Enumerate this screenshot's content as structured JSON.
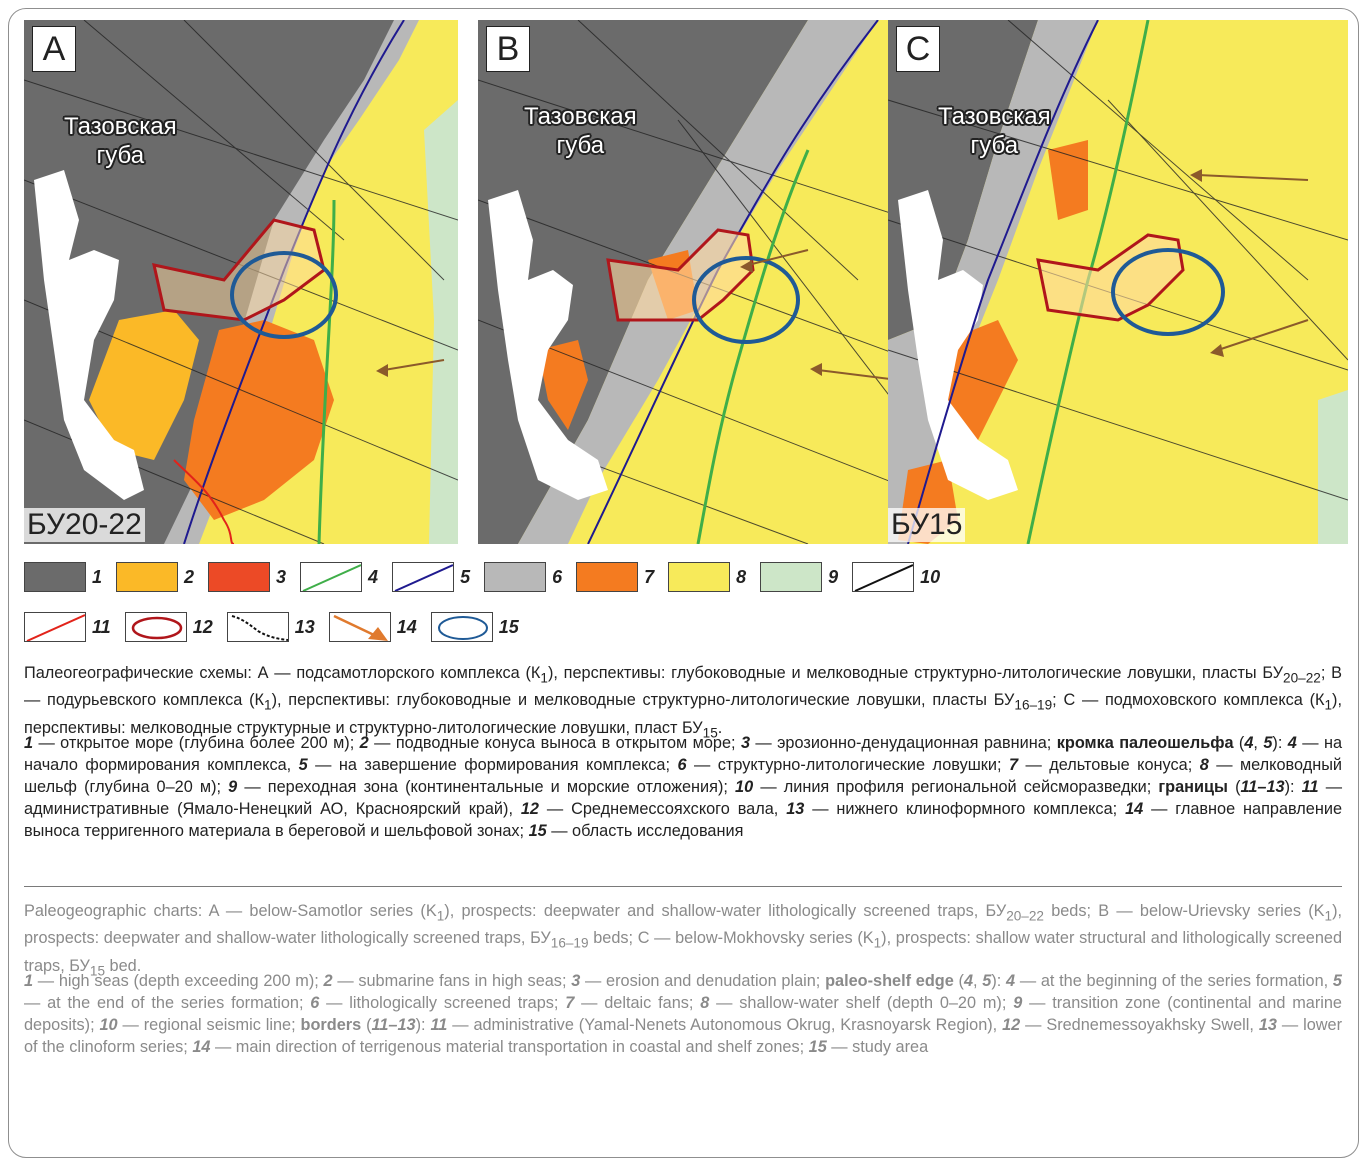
{
  "panels": [
    {
      "letter": "A",
      "place_label": "Тазовская\nгуба",
      "horizon": "БУ20-22"
    },
    {
      "letter": "B",
      "place_label": "Тазовская\nгуба",
      "horizon": ""
    },
    {
      "letter": "C",
      "place_label": "Тазовская\nгуба",
      "horizon": "БУ15"
    }
  ],
  "legend": [
    {
      "num": "1",
      "kind": "fill",
      "color": "#6b6b6b"
    },
    {
      "num": "2",
      "kind": "fill",
      "color": "#fbb927"
    },
    {
      "num": "3",
      "kind": "fill",
      "color": "#ec4a26"
    },
    {
      "num": "4",
      "kind": "line",
      "color": "#3fae49"
    },
    {
      "num": "5",
      "kind": "line",
      "color": "#1f1a8f"
    },
    {
      "num": "6",
      "kind": "fill",
      "color": "#b8b8b8"
    },
    {
      "num": "7",
      "kind": "fill",
      "color": "#f47b20"
    },
    {
      "num": "8",
      "kind": "fill",
      "color": "#f7ea5a"
    },
    {
      "num": "9",
      "kind": "fill",
      "color": "#cde6c8"
    },
    {
      "num": "10",
      "kind": "line",
      "color": "#111111"
    },
    {
      "num": "11",
      "kind": "line",
      "color": "#e2231a"
    },
    {
      "num": "12",
      "kind": "outline",
      "color": "#b0161b"
    },
    {
      "num": "13",
      "kind": "dashedline",
      "color": "#111111"
    },
    {
      "num": "14",
      "kind": "arrow",
      "color": "#e07a2e"
    },
    {
      "num": "15",
      "kind": "ellipse",
      "color": "#1f5a96"
    }
  ],
  "captions": {
    "ru_title": "Палеогеографические схемы: А — подсамотлорского комплекса (К<sub>1</sub>), перспективы: глубоководные и мелководные структурно-литологические ловушки, пласты БУ<sub>20–22</sub>; B — подурьевского комплекса (К<sub>1</sub>), перспективы: глубоководные и мелководные структурно-литологические ловушки, пласты БУ<sub>16–19</sub>; С — подмоховского комплекса (К<sub>1</sub>), перспективы: мелководные структурные и структурно-литологические ловушки, пласт БУ<sub>15</sub>.",
    "ru_legend": "<b><i>1</i></b> — открытое море (глубина более 200 м); <b><i>2</i></b> — подводные конуса выноса в открытом море; <b><i>3</i></b> — эрозионно-денудационная равнина; <b>кромка палеошельфа</b> (<b><i>4</i></b>, <b><i>5</i></b>): <b><i>4</i></b> — на начало формирования комплекса, <b><i>5</i></b> — на завершение формирования комплекса; <b><i>6</i></b> — структурно-литологические ловушки; <b><i>7</i></b> — дельтовые конуса; <b><i>8</i></b> — мелководный шельф (глубина 0–20 м); <b><i>9</i></b> — переходная зона (континентальные и морские отложения); <b><i>10</i></b> — линия профиля региональной сейсморазведки; <b>границы</b> (<b><i>11–13</i></b>): <b><i>11</i></b> — административные (Ямало-Ненецкий АО, Красноярский край), <b><i>12</i></b> — Среднемессояхского вала, <b><i>13</i></b> — нижнего клиноформного комплекса; <b><i>14</i></b> — главное направление выноса терригенного материала в береговой и шельфовой зонах; <b><i>15</i></b> — область исследования",
    "en_title": "Paleogeographic charts: A — below-Samotlor series (K<sub>1</sub>), prospects: deepwater and shallow-water lithologically screened traps, БУ<sub>20–22</sub> beds; B — below-Urievsky series (K<sub>1</sub>), prospects: deepwater and shallow-water lithologically screened traps, БУ<sub>16–19</sub> beds; C — below-Mokhovsky series (K<sub>1</sub>), prospects: shallow water structural and lithologically screened traps, БУ<sub>15</sub> bed.",
    "en_legend": "<b><i>1</i></b> — high seas (depth exceeding 200 m); <b><i>2</i></b> — submarine fans in high seas; <b><i>3</i></b> — erosion and denudation plain; <b>paleo-shelf edge</b> (<b><i>4</i></b>, <b><i>5</i></b>): <b><i>4</i></b> — at the beginning of the series formation, <b><i>5</i></b> — at the end of the series formation; <b><i>6</i></b> — lithologically screened traps; <b><i>7</i></b> — deltaic fans; <b><i>8</i></b> — shallow-water shelf (depth 0–20 m); <b><i>9</i></b> — transition zone (continental and marine deposits); <b><i>10</i></b> — regional seismic line; <b>borders</b> (<b><i>11–13</i></b>): <b><i>11</i></b> — administrative (Yamal-Nenets Autonomous Okrug, Krasnoyarsk Region), <b><i>12</i></b> — Srednemessoyakhsky Swell, <b><i>13</i></b> — lower of the clinoform series; <b><i>14</i></b> — main direction of terrigenous material transportation in coastal and shelf zones; <b><i>15</i></b> — study area"
  }
}
